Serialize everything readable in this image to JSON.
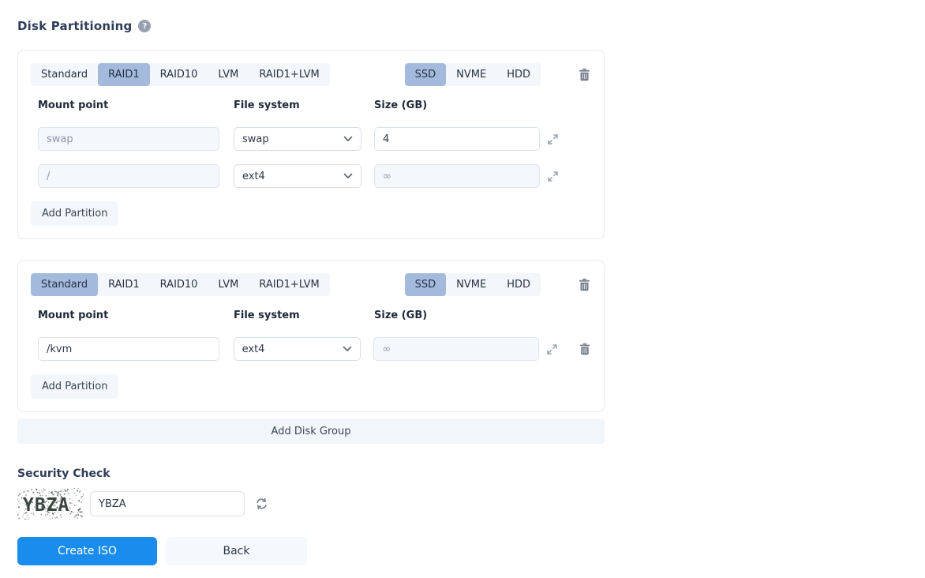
{
  "page": {
    "title": "Disk Partitioning",
    "help_icon": "question-mark"
  },
  "colors": {
    "accent_blue": "#1a8ceb",
    "tab_selected_bg": "#a3badd",
    "tab_group_bg": "#f3f7fc",
    "readonly_field_bg": "#f4f8fd",
    "title_text": "#2f3d59"
  },
  "groups": [
    {
      "raid_tabs": [
        "Standard",
        "RAID1",
        "RAID10",
        "LVM",
        "RAID1+LVM"
      ],
      "raid_selected": "RAID1",
      "disk_tabs": [
        "SSD",
        "NVME",
        "HDD"
      ],
      "disk_selected": "SSD",
      "columns": {
        "mount": "Mount point",
        "fs": "File system",
        "size": "Size (GB)"
      },
      "partitions": [
        {
          "mount": "swap",
          "fs": "swap",
          "size": "4"
        },
        {
          "mount": "/",
          "fs": "ext4",
          "size": "∞"
        }
      ],
      "add_partition_label": "Add Partition"
    },
    {
      "raid_tabs": [
        "Standard",
        "RAID1",
        "RAID10",
        "LVM",
        "RAID1+LVM"
      ],
      "raid_selected": "Standard",
      "disk_tabs": [
        "SSD",
        "NVME",
        "HDD"
      ],
      "disk_selected": "SSD",
      "columns": {
        "mount": "Mount point",
        "fs": "File system",
        "size": "Size (GB)"
      },
      "partitions": [
        {
          "mount": "/kvm",
          "fs": "ext4",
          "size": "∞"
        }
      ],
      "add_partition_label": "Add Partition"
    }
  ],
  "add_disk_group_label": "Add Disk Group",
  "security": {
    "title": "Security Check",
    "captcha_text": "YBZA",
    "captcha_input_value": "YBZA"
  },
  "actions": {
    "create_label": "Create ISO",
    "back_label": "Back"
  }
}
